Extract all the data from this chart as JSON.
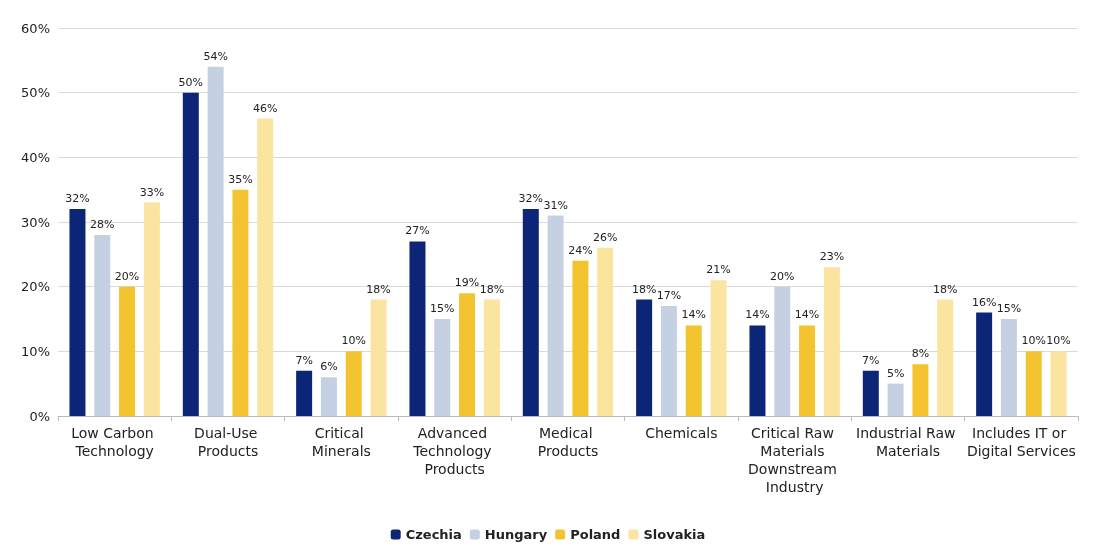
{
  "chart_data": {
    "type": "bar",
    "categories": [
      "Low Carbon Technology",
      "Dual-Use Products",
      "Critical Minerals",
      "Advanced Technology Products",
      "Medical Products",
      "Chemicals",
      "Critical Raw Materials Downstream Industry",
      "Industrial Raw Materials",
      "Includes IT or Digital Services"
    ],
    "series": [
      {
        "name": "Czechia",
        "color": "#0c2577",
        "values": [
          32,
          50,
          7,
          27,
          32,
          18,
          14,
          7,
          16
        ],
        "value_labels": [
          "32%",
          "50%",
          "7%",
          "27%",
          "32%",
          "18%",
          "14%",
          "7%",
          "16%"
        ]
      },
      {
        "name": "Hungary",
        "color": "#c5d1e3",
        "values": [
          28,
          54,
          6,
          15,
          31,
          17,
          20,
          5,
          15
        ],
        "value_labels": [
          "28%",
          "54%",
          "6%",
          "15%",
          "31%",
          "17%",
          "20%",
          "5%",
          "15%"
        ]
      },
      {
        "name": "Poland",
        "color": "#f4c430",
        "values": [
          20,
          35,
          10,
          19,
          24,
          14,
          14,
          8,
          10
        ],
        "value_labels": [
          "20%",
          "35%",
          "10%",
          "19%",
          "24%",
          "14%",
          "14%",
          "8%",
          "10%"
        ]
      },
      {
        "name": "Slovakia",
        "color": "#fbe3a0",
        "values": [
          33,
          46,
          18,
          18,
          26,
          21,
          23,
          18,
          10
        ],
        "value_labels": [
          "33%",
          "46%",
          "18%",
          "18%",
          "26%",
          "21%",
          "23%",
          "18%",
          "10%"
        ]
      }
    ],
    "ylim": [
      0,
      60
    ],
    "yticks": [
      {
        "value": 0,
        "label": "0%"
      },
      {
        "value": 10,
        "label": "10%"
      },
      {
        "value": 20,
        "label": "20%"
      },
      {
        "value": 30,
        "label": "30%"
      },
      {
        "value": 40,
        "label": "40%"
      },
      {
        "value": 50,
        "label": "50%"
      },
      {
        "value": 60,
        "label": "60%"
      }
    ],
    "grid": "y",
    "legend": "bottom"
  }
}
